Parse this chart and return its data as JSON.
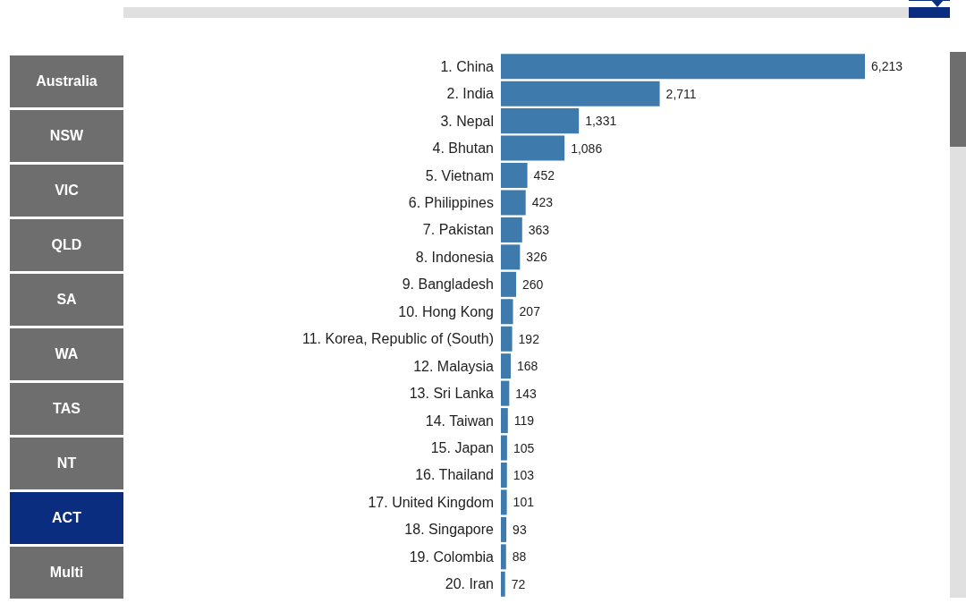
{
  "chart_data": [
    {
      "type": "other",
      "categories": [
        "Australia",
        "NSW",
        "VIC",
        "QLD",
        "SA",
        "WA",
        "TAS",
        "NT",
        "ACT",
        "Multi"
      ],
      "colors": [
        "#6e6e6e",
        "#6e6e6e",
        "#6e6e6e",
        "#6e6e6e",
        "#6e6e6e",
        "#6e6e6e",
        "#6e6e6e",
        "#6e6e6e",
        "#0a2d80",
        "#6e6e6e"
      ]
    },
    {
      "type": "bar",
      "orientation": "horizontal",
      "categories": [
        "1. China",
        "2. India",
        "3. Nepal",
        "4. Bhutan",
        "5. Vietnam",
        "6. Philippines",
        "7. Pakistan",
        "8. Indonesia",
        "9. Bangladesh",
        "10. Hong Kong",
        "11. Korea, Republic of (South)",
        "12. Malaysia",
        "13. Sri Lanka",
        "14. Taiwan",
        "15. Japan",
        "16. Thailand",
        "17. United Kingdom",
        "18. Singapore",
        "19. Colombia",
        "20. Iran"
      ],
      "values": [
        6213,
        2711,
        1331,
        1086,
        452,
        423,
        363,
        326,
        260,
        207,
        192,
        168,
        143,
        119,
        105,
        103,
        101,
        93,
        88,
        72
      ],
      "value_labels": [
        "6,213",
        "2,711",
        "1,331",
        "1,086",
        "452",
        "423",
        "363",
        "326",
        "260",
        "207",
        "192",
        "168",
        "143",
        "119",
        "105",
        "103",
        "101",
        "93",
        "88",
        "72"
      ],
      "color": "#3f7aad",
      "tick_labels": "y"
    }
  ]
}
